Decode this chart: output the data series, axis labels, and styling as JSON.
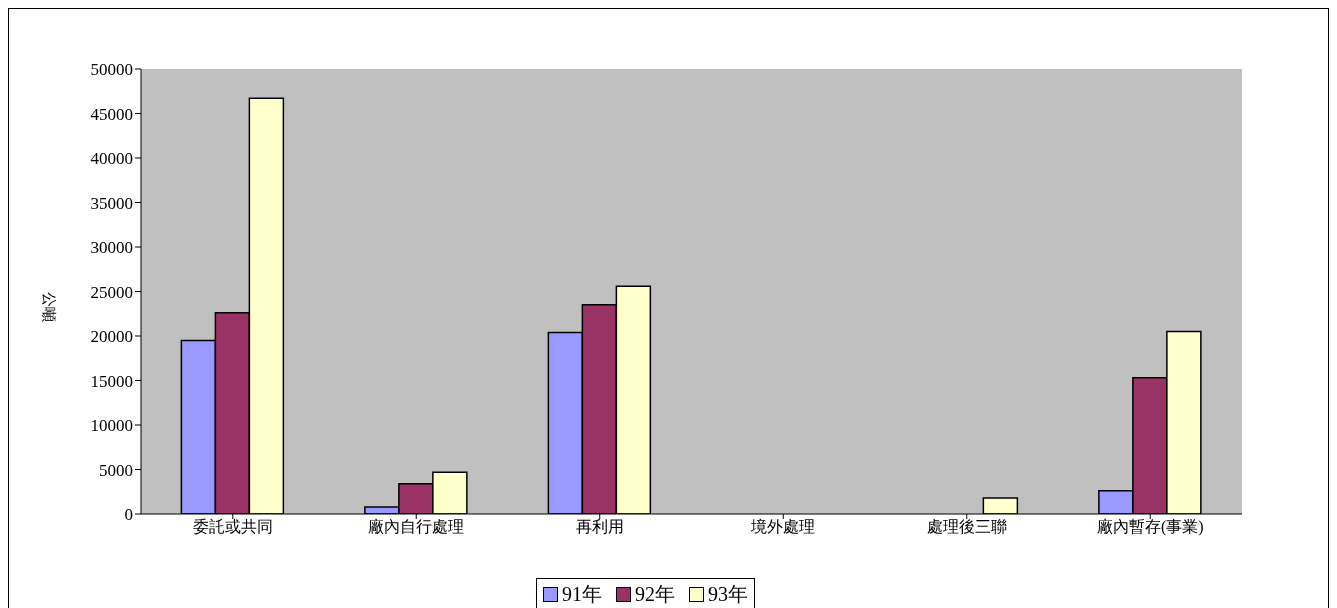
{
  "chart_data": {
    "type": "bar",
    "ylabel": "公噸",
    "categories": [
      "委託或共同",
      "廠內自行處理",
      "再利用",
      "境外處理",
      "處理後三聯",
      "廠內暫存(事業)"
    ],
    "series": [
      {
        "name": "91年",
        "color": "#9999ff",
        "values": [
          19500,
          800,
          20400,
          0,
          0,
          2600
        ]
      },
      {
        "name": "92年",
        "color": "#993366",
        "values": [
          22600,
          3400,
          23500,
          0,
          0,
          15300
        ]
      },
      {
        "name": "93年",
        "color": "#ffffcc",
        "values": [
          46700,
          4700,
          25600,
          0,
          1800,
          20500
        ]
      }
    ],
    "ylim": [
      0,
      50000
    ],
    "yticks": [
      0,
      5000,
      10000,
      15000,
      20000,
      25000,
      30000,
      35000,
      40000,
      45000,
      50000
    ],
    "legend": "bottom"
  }
}
